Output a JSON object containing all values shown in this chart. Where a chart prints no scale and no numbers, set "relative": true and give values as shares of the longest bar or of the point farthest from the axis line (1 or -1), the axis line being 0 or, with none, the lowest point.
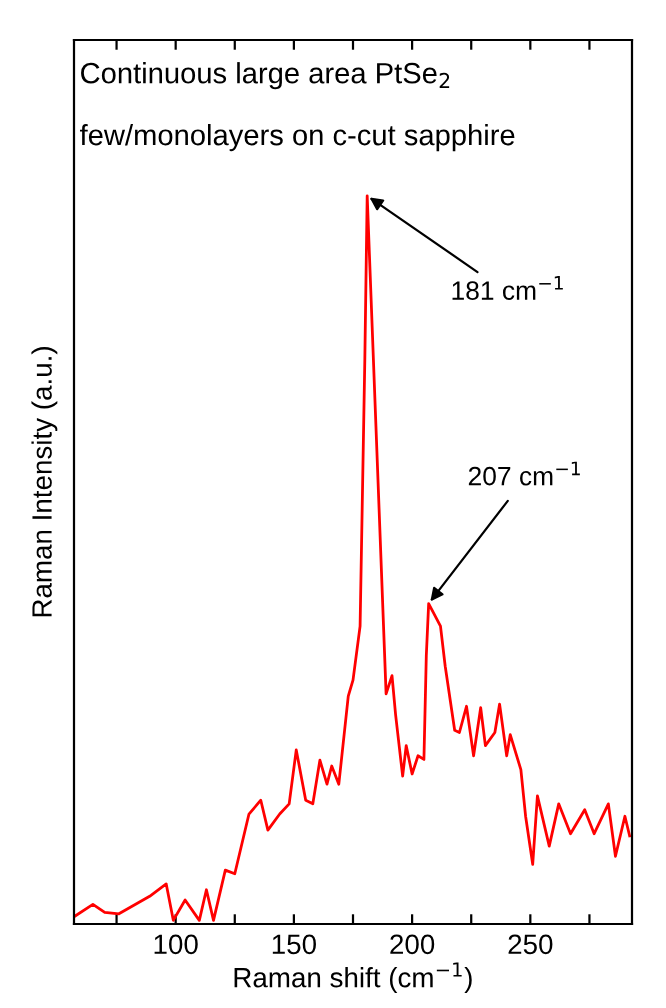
{
  "chart_data": {
    "type": "line",
    "title": "Continuous large area PtSe$_{2}$",
    "subtitle": "few/monolayers on c-cut sapphire",
    "xlabel": "Raman shift (cm$^{−1}$)",
    "ylabel": "Raman Intensity (a.u.)",
    "relative": true,
    "xlim": [
      57,
      293
    ],
    "xticks": [
      {
        "value": 75,
        "label": null
      },
      100,
      {
        "value": 125,
        "label": null
      },
      150,
      {
        "value": 175,
        "label": null
      },
      200,
      {
        "value": 225,
        "label": null
      },
      250,
      {
        "value": 275,
        "label": null
      }
    ],
    "series": [
      {
        "color": "#ff0000",
        "x": [
          57,
          65,
          70,
          76,
          89,
          96,
          99,
          104,
          110,
          113,
          116,
          121,
          125,
          131,
          136,
          139,
          144,
          148,
          151,
          155,
          158,
          161,
          164,
          166,
          169,
          173,
          175,
          178,
          180,
          181,
          184.7,
          189,
          191.5,
          193,
          196,
          197.5,
          200,
          202.5,
          205,
          206,
          207,
          212,
          214,
          218,
          220,
          223,
          226,
          229,
          231,
          235,
          237,
          240,
          241.5,
          246,
          248,
          251,
          253,
          258,
          262,
          267,
          273,
          277,
          283,
          286,
          290,
          292
        ],
        "values": [
          0.01,
          0.027,
          0.016,
          0.014,
          0.038,
          0.055,
          0.005,
          0.033,
          0.005,
          0.047,
          0.005,
          0.074,
          0.069,
          0.151,
          0.17,
          0.129,
          0.151,
          0.165,
          0.239,
          0.17,
          0.165,
          0.225,
          0.192,
          0.217,
          0.192,
          0.313,
          0.335,
          0.409,
          0.775,
          1.0,
          0.684,
          0.316,
          0.341,
          0.288,
          0.203,
          0.245,
          0.206,
          0.231,
          0.226,
          0.368,
          0.44,
          0.409,
          0.354,
          0.266,
          0.263,
          0.299,
          0.231,
          0.297,
          0.245,
          0.263,
          0.302,
          0.231,
          0.26,
          0.212,
          0.148,
          0.082,
          0.176,
          0.107,
          0.165,
          0.124,
          0.157,
          0.124,
          0.165,
          0.093,
          0.148,
          0.121
        ]
      }
    ],
    "annotations": [
      {
        "text": "181 cm$^{−1}$",
        "x": 181,
        "y": 1.0
      },
      {
        "text": "207 cm$^{−1}$",
        "x": 207,
        "y": 0.44
      }
    ],
    "grid": false,
    "legend": false,
    "marker": "none",
    "line_style": "solid"
  }
}
